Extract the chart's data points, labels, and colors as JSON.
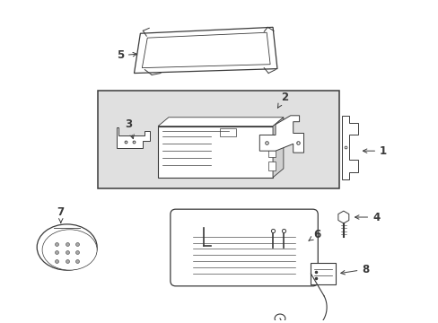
{
  "background_color": "#ffffff",
  "line_color": "#3a3a3a",
  "figsize": [
    4.89,
    3.6
  ],
  "dpi": 100
}
